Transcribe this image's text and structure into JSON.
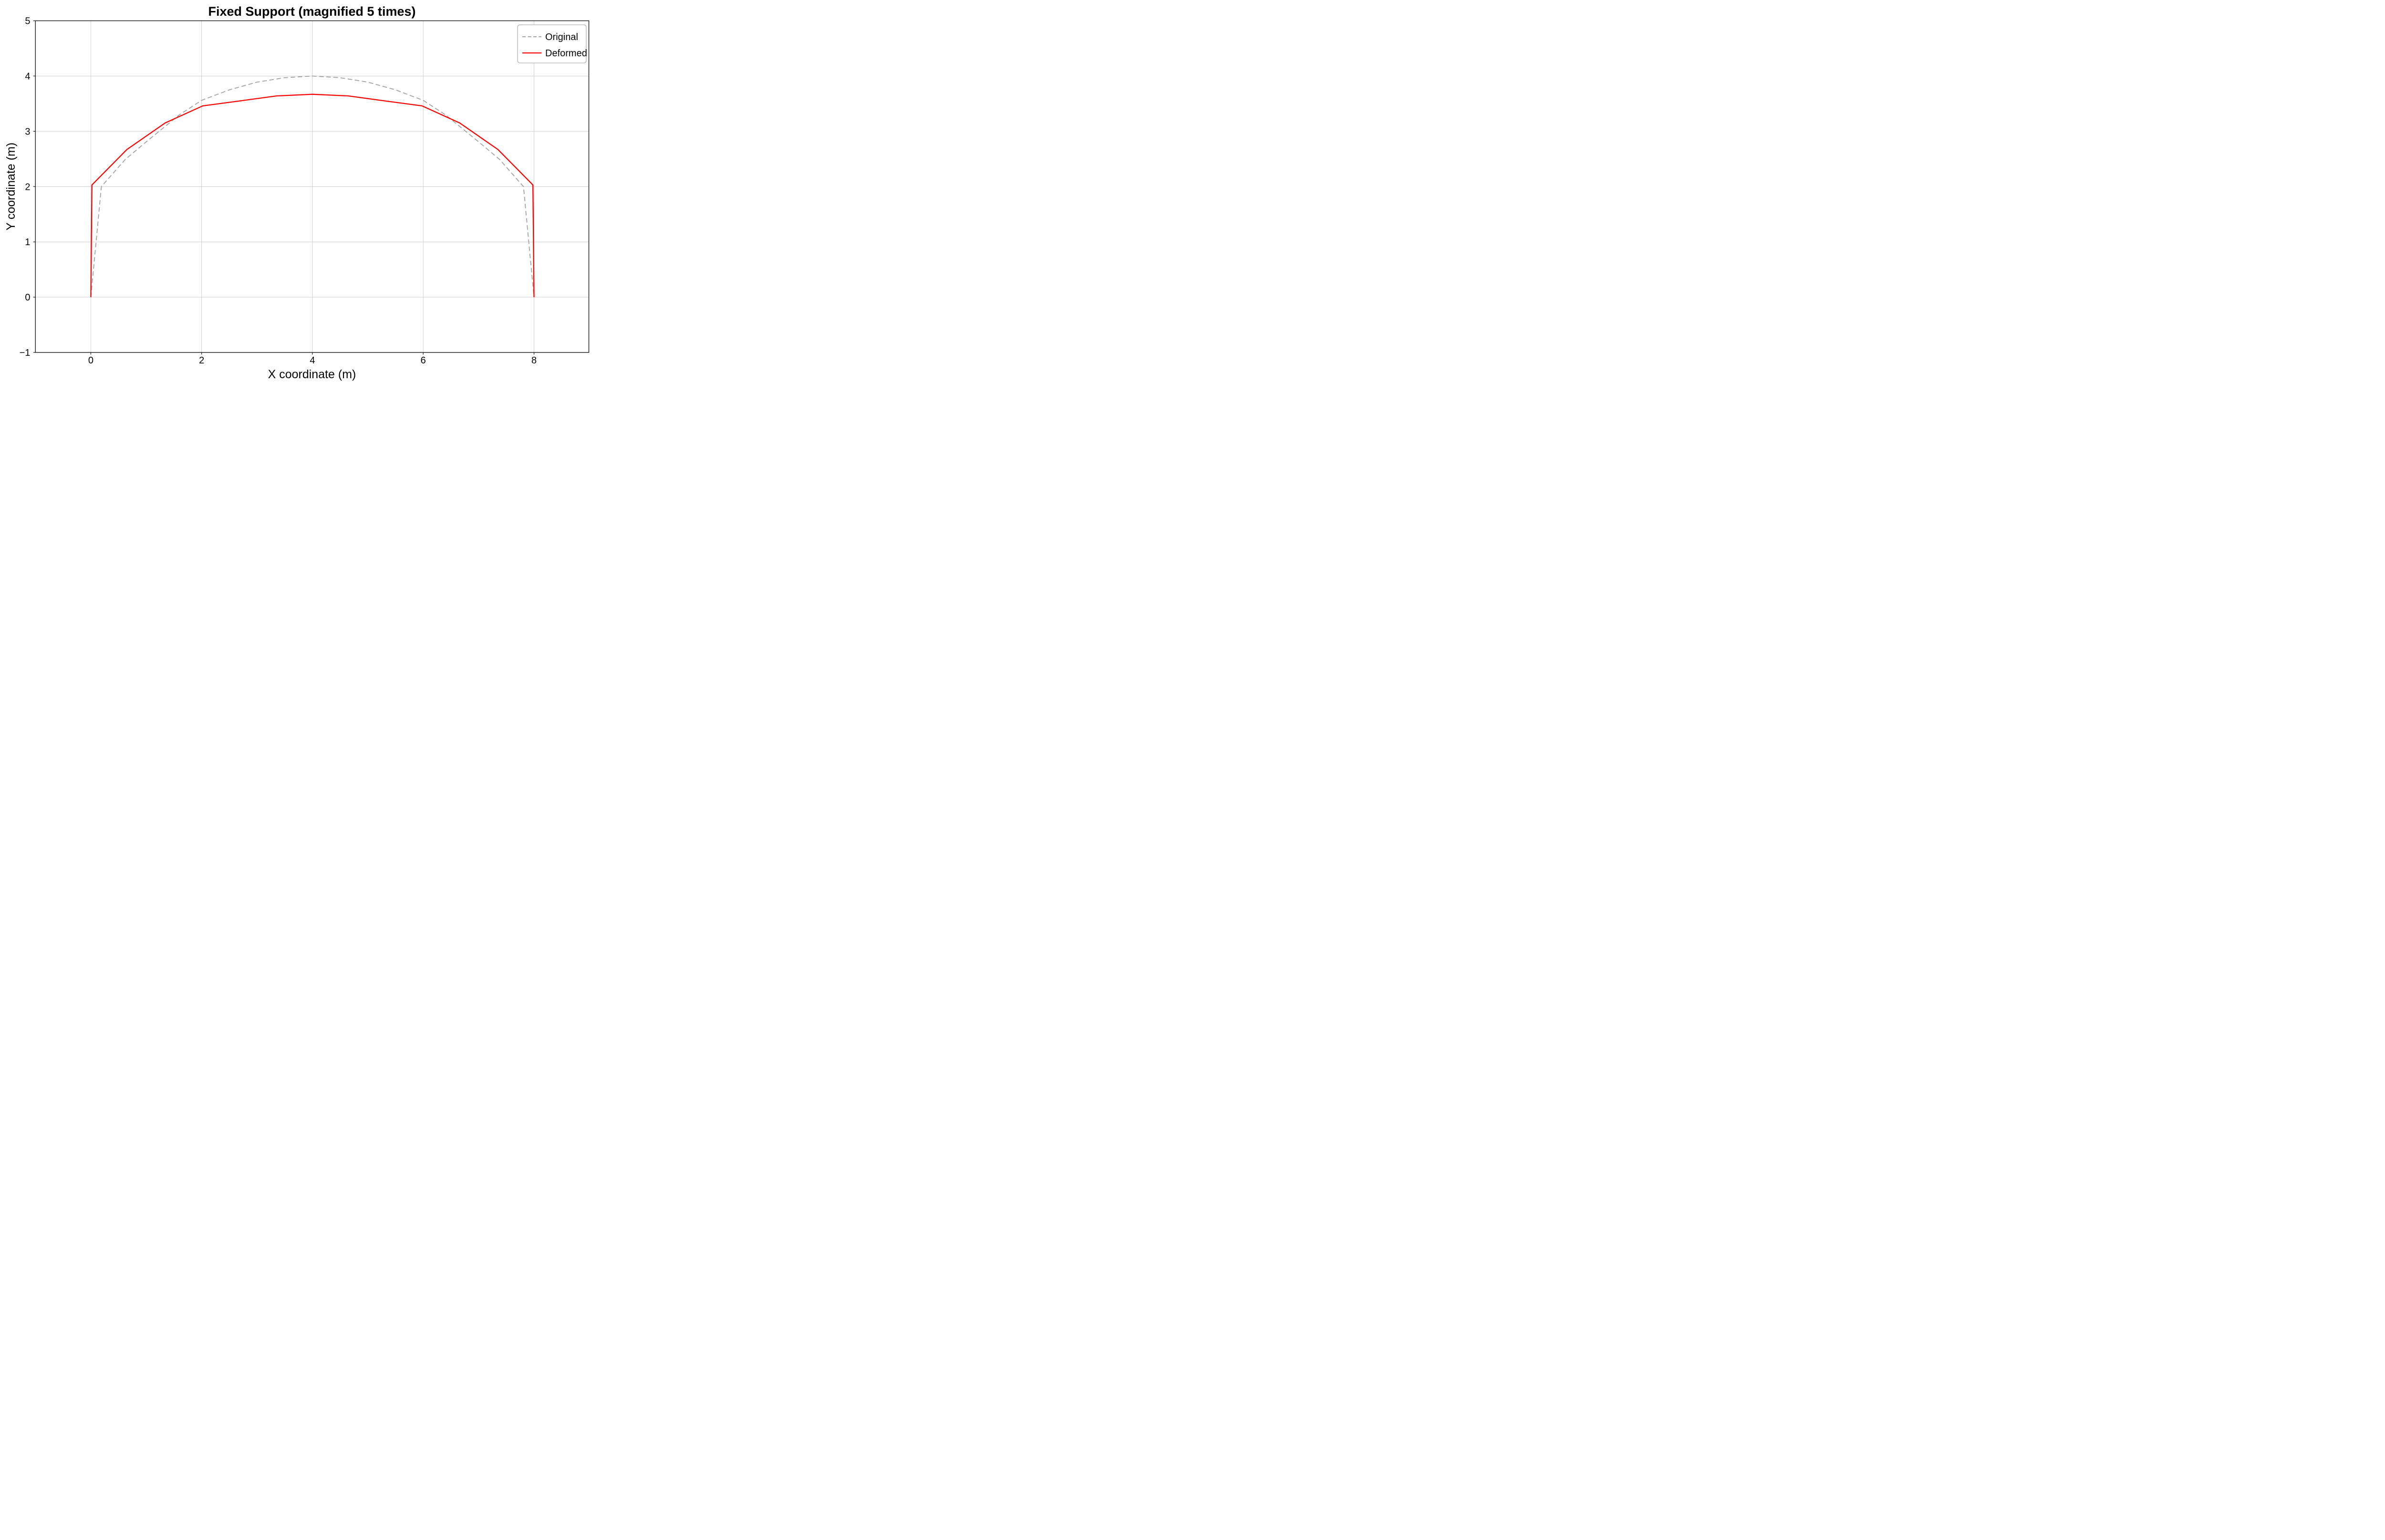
{
  "figure": {
    "kind": "matplotlib-style plot"
  },
  "chart_data": {
    "type": "line",
    "title": "Fixed Support (magnified 5 times)",
    "xlabel": "X coordinate (m)",
    "ylabel": "Y coordinate (m)",
    "xlim": [
      -1,
      8.99
    ],
    "ylim": [
      -1,
      5
    ],
    "grid": true,
    "legend": {
      "position": "upper right",
      "entries": [
        "Original",
        "Deformed"
      ]
    },
    "x_ticks": {
      "values": [
        0,
        2,
        4,
        6,
        8
      ],
      "labels": [
        "0",
        "2",
        "4",
        "6",
        "8"
      ]
    },
    "y_ticks": {
      "values": [
        -1,
        0,
        1,
        2,
        3,
        4,
        5
      ],
      "labels": [
        "−1",
        "0",
        "1",
        "2",
        "3",
        "4",
        "5"
      ]
    },
    "series": [
      {
        "name": "Original",
        "color": "#a6a6a6",
        "line_style": "dashed",
        "line_width": 1.9,
        "points": [
          [
            0,
            0
          ],
          [
            0.19,
            2.0
          ],
          [
            0.62,
            2.49
          ],
          [
            1.0,
            2.81
          ],
          [
            1.6,
            3.3
          ],
          [
            2.0,
            3.56
          ],
          [
            2.5,
            3.75
          ],
          [
            3.0,
            3.89
          ],
          [
            3.5,
            3.97
          ],
          [
            4.0,
            4.0
          ],
          [
            4.5,
            3.97
          ],
          [
            5.0,
            3.89
          ],
          [
            5.5,
            3.75
          ],
          [
            6.0,
            3.56
          ],
          [
            6.4,
            3.3
          ],
          [
            7.0,
            2.81
          ],
          [
            7.38,
            2.49
          ],
          [
            7.81,
            2.0
          ],
          [
            8,
            0
          ]
        ]
      },
      {
        "name": "Deformed",
        "color": "#ff0000",
        "line_style": "solid",
        "line_width": 2.3,
        "points": [
          [
            0,
            0
          ],
          [
            0.02,
            2.03
          ],
          [
            0.65,
            2.67
          ],
          [
            1.34,
            3.15
          ],
          [
            2.02,
            3.46
          ],
          [
            2.69,
            3.55
          ],
          [
            3.35,
            3.64
          ],
          [
            4.0,
            3.67
          ],
          [
            4.65,
            3.64
          ],
          [
            5.31,
            3.55
          ],
          [
            5.98,
            3.46
          ],
          [
            6.66,
            3.15
          ],
          [
            7.35,
            2.67
          ],
          [
            7.98,
            2.03
          ],
          [
            8,
            0
          ]
        ]
      }
    ],
    "colors": {
      "grid": "#c9c9c9",
      "spine": "#262626",
      "text": "#000000",
      "legend_border": "#b0b0b0",
      "background": "#ffffff"
    }
  }
}
